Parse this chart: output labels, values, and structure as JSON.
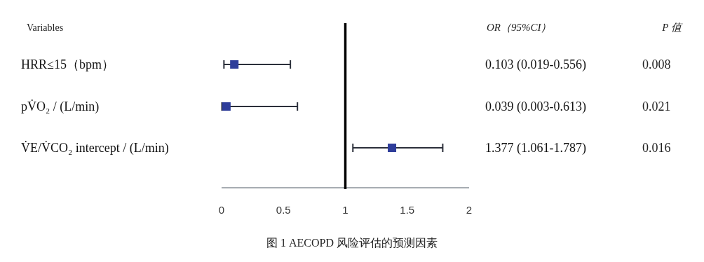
{
  "chart_data": {
    "type": "scatter",
    "orientation": "horizontal",
    "marker": "square",
    "categories": [
      "HRR≤15（bpm）",
      "pV̇O₂ / (L/min)",
      "V̇E/V̇CO₂ intercept / (L/min)"
    ],
    "values": [
      0.103,
      0.039,
      1.377
    ],
    "errors": [
      [
        0.019,
        0.556
      ],
      [
        0.003,
        0.613
      ],
      [
        1.061,
        1.787
      ]
    ],
    "color": "#2e3d9a",
    "value_labels": [
      "0.103 (0.019-0.556)",
      "0.039 (0.003-0.613)",
      "1.377 (1.061-1.787)"
    ],
    "xlim": [
      0,
      2
    ],
    "xticks": [
      0,
      0.5,
      1,
      1.5,
      2
    ],
    "ref_lines": [
      {
        "axis": "x",
        "value": 1,
        "color": "#000000"
      }
    ],
    "annotations": [
      "Variables",
      "OR（95%CI）",
      "P 值",
      "0.008",
      "0.021",
      "0.016",
      "图 1  AECOPD 风险评估的预测因素"
    ]
  }
}
